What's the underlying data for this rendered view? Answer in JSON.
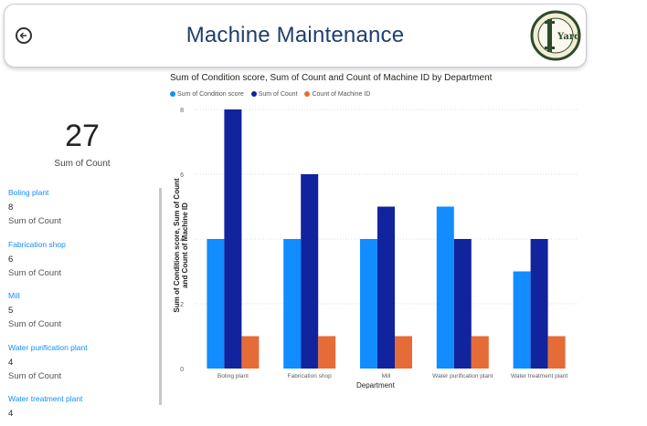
{
  "header": {
    "title": "Machine Maintenance",
    "back_icon": "arrow-left-icon",
    "logo_text": "Yard"
  },
  "kpi": {
    "value": "27",
    "label": "Sum of Count"
  },
  "cards": [
    {
      "category": "Boling plant",
      "value": "8",
      "label": "Sum of Count"
    },
    {
      "category": "Fabrication shop",
      "value": "6",
      "label": "Sum of Count"
    },
    {
      "category": "Mill",
      "value": "5",
      "label": "Sum of Count"
    },
    {
      "category": "Water purification plant",
      "value": "4",
      "label": "Sum of Count"
    },
    {
      "category": "Water treatment plant",
      "value": "4",
      "label": ""
    }
  ],
  "chart_data": {
    "type": "bar",
    "title": "Sum of Condition score, Sum of Count and Count of Machine ID by Department",
    "xlabel": "Department",
    "ylabel": "Sum of Condition score, Sum of Count and Count of Machine ID",
    "categories": [
      "Boling plant",
      "Fabrication shop",
      "Mill",
      "Water purification plant",
      "Water treatment plant"
    ],
    "series": [
      {
        "name": "Sum of  Condition score",
        "color": "#118dff",
        "values": [
          4,
          4,
          4,
          5,
          3
        ]
      },
      {
        "name": "Sum of Count",
        "color": "#12239e",
        "values": [
          8,
          6,
          5,
          4,
          4
        ]
      },
      {
        "name": "Count of Machine ID",
        "color": "#e66c37",
        "values": [
          1,
          1,
          1,
          1,
          1
        ]
      }
    ],
    "ylim": [
      0,
      8
    ],
    "yticks": [
      0,
      2,
      4,
      6,
      8
    ],
    "grid": true,
    "legend_position": "top-left"
  }
}
